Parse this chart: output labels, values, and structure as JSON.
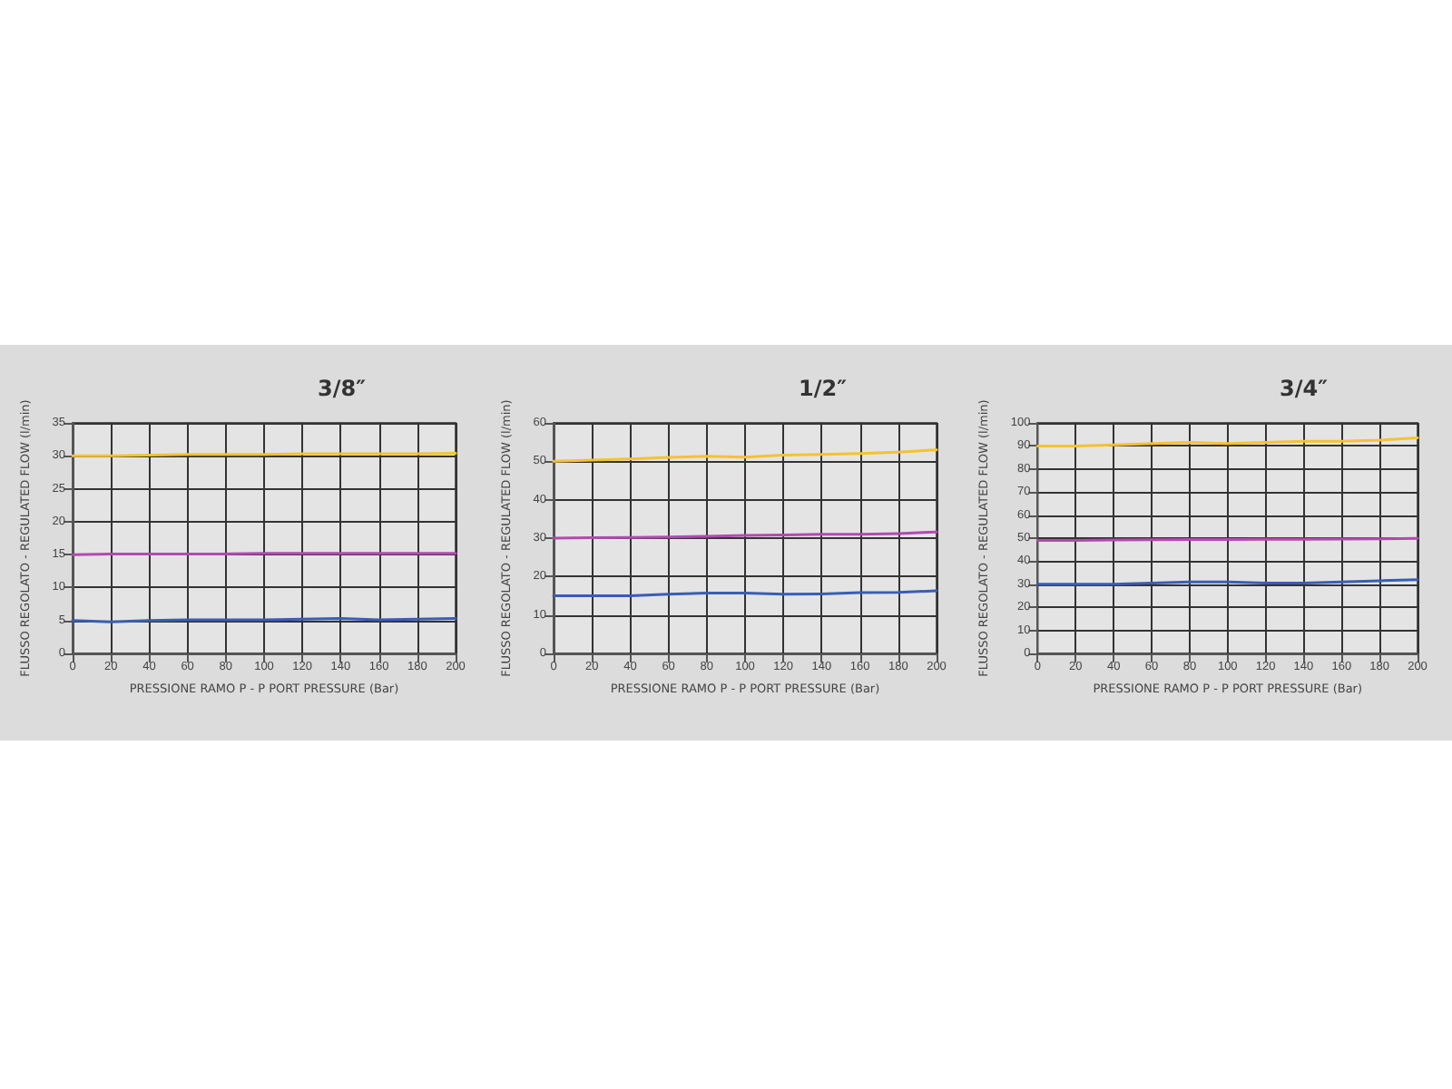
{
  "chart_data": [
    {
      "type": "line",
      "title": "3/8″",
      "xlabel": "PRESSIONE RAMO P - P PORT PRESSURE (Bar)",
      "ylabel": "FLUSSO REGOLATO - REGULATED FLOW (l/min)",
      "x": [
        0,
        20,
        40,
        60,
        80,
        100,
        120,
        140,
        160,
        180,
        200
      ],
      "series": [
        {
          "color": "#f5c230",
          "values": [
            30,
            30,
            30.1,
            30.2,
            30.2,
            30.2,
            30.3,
            30.3,
            30.3,
            30.3,
            30.4
          ]
        },
        {
          "color": "#b24ab0",
          "values": [
            15,
            15.1,
            15.1,
            15.1,
            15.1,
            15.2,
            15.2,
            15.2,
            15.2,
            15.2,
            15.2
          ]
        },
        {
          "color": "#3a5db4",
          "values": [
            5,
            4.8,
            5,
            5.1,
            5.1,
            5.1,
            5.2,
            5.3,
            5.1,
            5.2,
            5.3
          ]
        }
      ],
      "xlim": [
        0,
        200
      ],
      "xticks": [
        0,
        20,
        40,
        60,
        80,
        100,
        120,
        140,
        160,
        180,
        200
      ],
      "ylim": [
        0,
        35
      ],
      "yticks": [
        0,
        5,
        10,
        15,
        20,
        25,
        30,
        35
      ],
      "grid": true,
      "marker": "none",
      "line_style": "solid"
    },
    {
      "type": "line",
      "title": "1/2″",
      "xlabel": "PRESSIONE RAMO P - P PORT PRESSURE (Bar)",
      "ylabel": "FLUSSO REGOLATO - REGULATED FLOW (l/min)",
      "x": [
        0,
        20,
        40,
        60,
        80,
        100,
        120,
        140,
        160,
        180,
        200
      ],
      "series": [
        {
          "color": "#f5c230",
          "values": [
            50,
            50.3,
            50.6,
            51,
            51.3,
            51.1,
            51.6,
            51.8,
            52,
            52.4,
            53
          ]
        },
        {
          "color": "#b24ab0",
          "values": [
            30,
            30.1,
            30.2,
            30.3,
            30.5,
            30.7,
            30.8,
            31,
            31,
            31.2,
            31.6
          ]
        },
        {
          "color": "#3a5db4",
          "values": [
            15,
            15,
            15,
            15.4,
            15.7,
            15.7,
            15.4,
            15.5,
            15.8,
            15.9,
            16.3
          ]
        }
      ],
      "xlim": [
        0,
        200
      ],
      "xticks": [
        0,
        20,
        40,
        60,
        80,
        100,
        120,
        140,
        160,
        180,
        200
      ],
      "ylim": [
        0,
        60
      ],
      "yticks": [
        0,
        10,
        20,
        30,
        40,
        50,
        60
      ],
      "grid": true,
      "marker": "none",
      "line_style": "solid"
    },
    {
      "type": "line",
      "title": "3/4″",
      "xlabel": "PRESSIONE RAMO P - P PORT PRESSURE (Bar)",
      "ylabel": "FLUSSO REGOLATO - REGULATED FLOW (l/min)",
      "x": [
        0,
        20,
        40,
        60,
        80,
        100,
        120,
        140,
        160,
        180,
        200
      ],
      "series": [
        {
          "color": "#f5c230",
          "values": [
            90,
            90,
            90.5,
            91,
            91.5,
            91,
            91.5,
            92,
            92,
            92.5,
            93.5
          ]
        },
        {
          "color": "#b24ab0",
          "values": [
            49,
            49,
            49.2,
            49.3,
            49.4,
            49.4,
            49.5,
            49.5,
            49.6,
            49.7,
            49.9
          ]
        },
        {
          "color": "#3a5db4",
          "values": [
            30,
            30,
            30,
            30.5,
            31,
            31,
            30.5,
            30.5,
            31,
            31.5,
            32
          ]
        }
      ],
      "xlim": [
        0,
        200
      ],
      "xticks": [
        0,
        20,
        40,
        60,
        80,
        100,
        120,
        140,
        160,
        180,
        200
      ],
      "ylim": [
        0,
        100
      ],
      "yticks": [
        0,
        10,
        20,
        30,
        40,
        50,
        60,
        70,
        80,
        90,
        100
      ],
      "grid": true,
      "marker": "none",
      "line_style": "solid"
    }
  ]
}
